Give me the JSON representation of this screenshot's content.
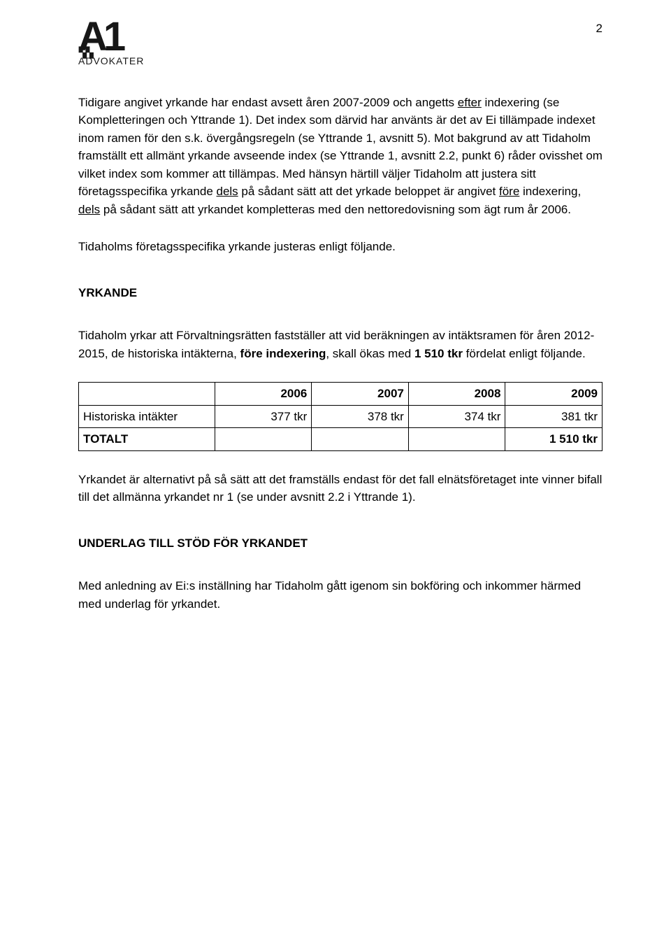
{
  "page_number": "2",
  "logo": {
    "mark": "A1",
    "subtext": "ADVOKATER"
  },
  "paragraphs": {
    "p1_a": "Tidigare angivet yrkande har endast avsett åren 2007-2009 och angetts ",
    "p1_efter": "efter",
    "p1_b": " indexering (se Kompletteringen och Yttrande 1). Det index som därvid har använts är det av Ei tillämpade indexet inom ramen för den s.k. övergångsregeln (se Yttrande 1, avsnitt 5). Mot bakgrund av att Tidaholm framställt ett allmänt yrkande avseende index (se Yttrande 1, avsnitt 2.2, punkt 6) råder ovisshet om vilket index som kommer att tillämpas. Med hänsyn härtill väljer Tidaholm att justera sitt företagsspecifika yrkande ",
    "p1_dels1": "dels",
    "p1_c": " på sådant sätt att det yrkade beloppet är angivet ",
    "p1_fore": "före",
    "p1_d": " indexering, ",
    "p1_dels2": "dels",
    "p1_e": " på sådant sätt att yrkandet kompletteras med den nettoredovisning som ägt rum år 2006.",
    "p2": "Tidaholms företagsspecifika yrkande justeras enligt följande.",
    "heading_yrkande": "YRKANDE",
    "p3_a": "Tidaholm yrkar att Förvaltningsrätten fastställer att vid beräkningen av intäktsramen för åren 2012-2015, de historiska intäkterna, ",
    "p3_bold1": "före indexering",
    "p3_b": ", skall ökas med ",
    "p3_bold2": "1 510 tkr",
    "p3_c": " fördelat enligt följande.",
    "p4": "Yrkandet är alternativt på så sätt att det framställs endast för det fall elnätsföretaget inte vinner bifall till det allmänna yrkandet nr 1 (se under avsnitt 2.2 i Yttrande 1).",
    "heading_underlag": "UNDERLAG TILL STÖD FÖR YRKANDET",
    "p5": "Med anledning av Ei:s inställning har Tidaholm gått igenom sin bokföring och inkommer härmed med underlag för yrkandet."
  },
  "table": {
    "header_blank": "",
    "headers": [
      "2006",
      "2007",
      "2008",
      "2009"
    ],
    "row1_label": "Historiska intäkter",
    "row1_values": [
      "377 tkr",
      "378 tkr",
      "374 tkr",
      "381 tkr"
    ],
    "row2_label": "TOTALT",
    "row2_values": [
      "",
      "",
      "",
      "1 510 tkr"
    ]
  }
}
